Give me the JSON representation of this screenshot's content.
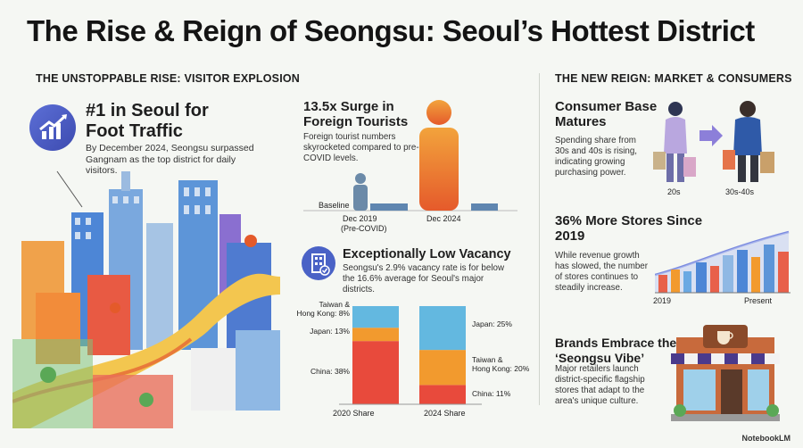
{
  "title": "The Rise & Reign of Seongsu: Seoul’s Hottest District",
  "left_section": {
    "heading": "The Unstoppable Rise: Visitor Explosion",
    "hero_title": "#1 in Seoul for Foot Traffic",
    "hero_text": "By December 2024, Seongsu surpassed Gangnam as the top district for daily visitors."
  },
  "tourists": {
    "title": "13.5x Surge in Foreign Tourists",
    "text": "Foreign tourist numbers skyrocketed compared to pre-COVID levels.",
    "baseline_label": "Baseline",
    "label_2019": "Dec 2019",
    "label_2019_sub": "(Pre-COVID)",
    "label_2024": "Dec 2024"
  },
  "vacancy": {
    "title": "Exceptionally Low Vacancy",
    "text": "Seongsu's 2.9% vacancy rate is for below the 16.6% average for Seoul's major districts."
  },
  "chart_data": {
    "type": "bar",
    "stacked": true,
    "categories": [
      "2020 Share",
      "2024 Share"
    ],
    "series": [
      {
        "name": "China",
        "values": [
          38,
          11
        ],
        "color": "#e84a3c"
      },
      {
        "name": "Taiwan & Hong Kong",
        "values": [
          8,
          20
        ],
        "color": "#f29a2e"
      },
      {
        "name": "Japan",
        "values": [
          13,
          25
        ],
        "color": "#63b8e0"
      }
    ],
    "labels_2020": [
      "Taiwan &",
      "Hong Kong: 8%",
      "Japan: 13%",
      "China: 38%"
    ],
    "labels_2024": [
      "Japan: 25%",
      "Taiwan &",
      "Hong Kong: 20%",
      "China: 11%"
    ]
  },
  "right_section": {
    "heading": "The New Reign: Market & Consumers",
    "consumer_title": "Consumer Base Matures",
    "consumer_text": "Spending share from 30s and 40s is rising, indicating growing purchasing power.",
    "age_20s": "20s",
    "age_30s_40s": "30s-40s",
    "stores_title": "36% More Stores Since 2019",
    "stores_text": "While revenue growth has slowed, the number of stores continues to steadily increase.",
    "stores_x_start": "2019",
    "stores_x_end": "Present",
    "brands_title": "Brands Embrace the ‘Seongsu Vibe’",
    "brands_text": "Major retailers launch district-specific flagship stores that adapt to the area's unique culture."
  },
  "footer": {
    "brand": "NotebookLM"
  }
}
